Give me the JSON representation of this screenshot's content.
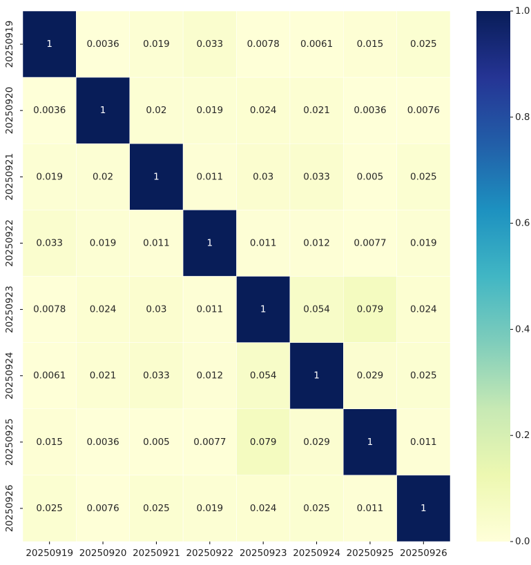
{
  "chart_data": {
    "type": "heatmap",
    "x_categories": [
      "20250919",
      "20250920",
      "20250921",
      "20250922",
      "20250923",
      "20250924",
      "20250925",
      "20250926"
    ],
    "y_categories": [
      "20250919",
      "20250920",
      "20250921",
      "20250922",
      "20250923",
      "20250924",
      "20250925",
      "20250926"
    ],
    "values": [
      [
        1,
        0.0036,
        0.019,
        0.033,
        0.0078,
        0.0061,
        0.015,
        0.025
      ],
      [
        0.0036,
        1,
        0.02,
        0.019,
        0.024,
        0.021,
        0.0036,
        0.0076
      ],
      [
        0.019,
        0.02,
        1,
        0.011,
        0.03,
        0.033,
        0.005,
        0.025
      ],
      [
        0.033,
        0.019,
        0.011,
        1,
        0.011,
        0.012,
        0.0077,
        0.019
      ],
      [
        0.0078,
        0.024,
        0.03,
        0.011,
        1,
        0.054,
        0.079,
        0.024
      ],
      [
        0.0061,
        0.021,
        0.033,
        0.012,
        0.054,
        1,
        0.029,
        0.025
      ],
      [
        0.015,
        0.0036,
        0.005,
        0.0077,
        0.079,
        0.029,
        1,
        0.011
      ],
      [
        0.025,
        0.0076,
        0.025,
        0.019,
        0.024,
        0.025,
        0.011,
        1
      ]
    ],
    "colormap": [
      "#ffffd9",
      "#edf8b1",
      "#c7e9b4",
      "#7fcdbb",
      "#41b6c4",
      "#1d91c0",
      "#225ea8",
      "#253494",
      "#081d58"
    ],
    "clim": [
      0,
      1
    ],
    "cticks": [
      {
        "value": 0,
        "label": "0.0"
      },
      0.2,
      0.4,
      0.6,
      0.8,
      {
        "value": 1,
        "label": "1.0"
      }
    ]
  }
}
